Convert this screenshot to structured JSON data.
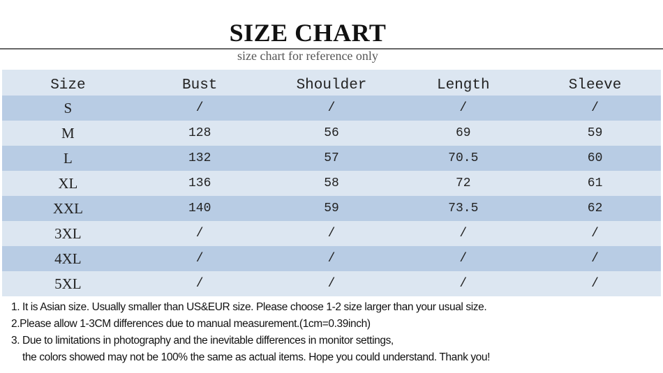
{
  "header": {
    "title": "SIZE CHART",
    "subtitle": "size chart for reference only"
  },
  "table": {
    "columns": [
      "Size",
      "Bust",
      "Shoulder",
      "Length",
      "Sleeve"
    ],
    "rows": [
      [
        "S",
        "/",
        "/",
        "/",
        "/"
      ],
      [
        "M",
        "128",
        "56",
        "69",
        "59"
      ],
      [
        "L",
        "132",
        "57",
        "70.5",
        "60"
      ],
      [
        "XL",
        "136",
        "58",
        "72",
        "61"
      ],
      [
        "XXL",
        "140",
        "59",
        "73.5",
        "62"
      ],
      [
        "3XL",
        "/",
        "/",
        "/",
        "/"
      ],
      [
        "4XL",
        "/",
        "/",
        "/",
        "/"
      ],
      [
        "5XL",
        "/",
        "/",
        "/",
        "/"
      ]
    ]
  },
  "colors": {
    "row_dark": "#b8cce4",
    "row_light": "#dce6f1"
  },
  "notes": [
    "1. It is Asian size.  Usually smaller than US&EUR size. Please choose 1-2 size larger than your usual size.",
    "2.Please allow 1-3CM differences due to manual measurement.(1cm=0.39inch)",
    "3. Due to limitations in photography and the inevitable differences in monitor settings,",
    "the colors showed may not be 100% the same as actual items. Hope you could understand. Thank you!"
  ]
}
